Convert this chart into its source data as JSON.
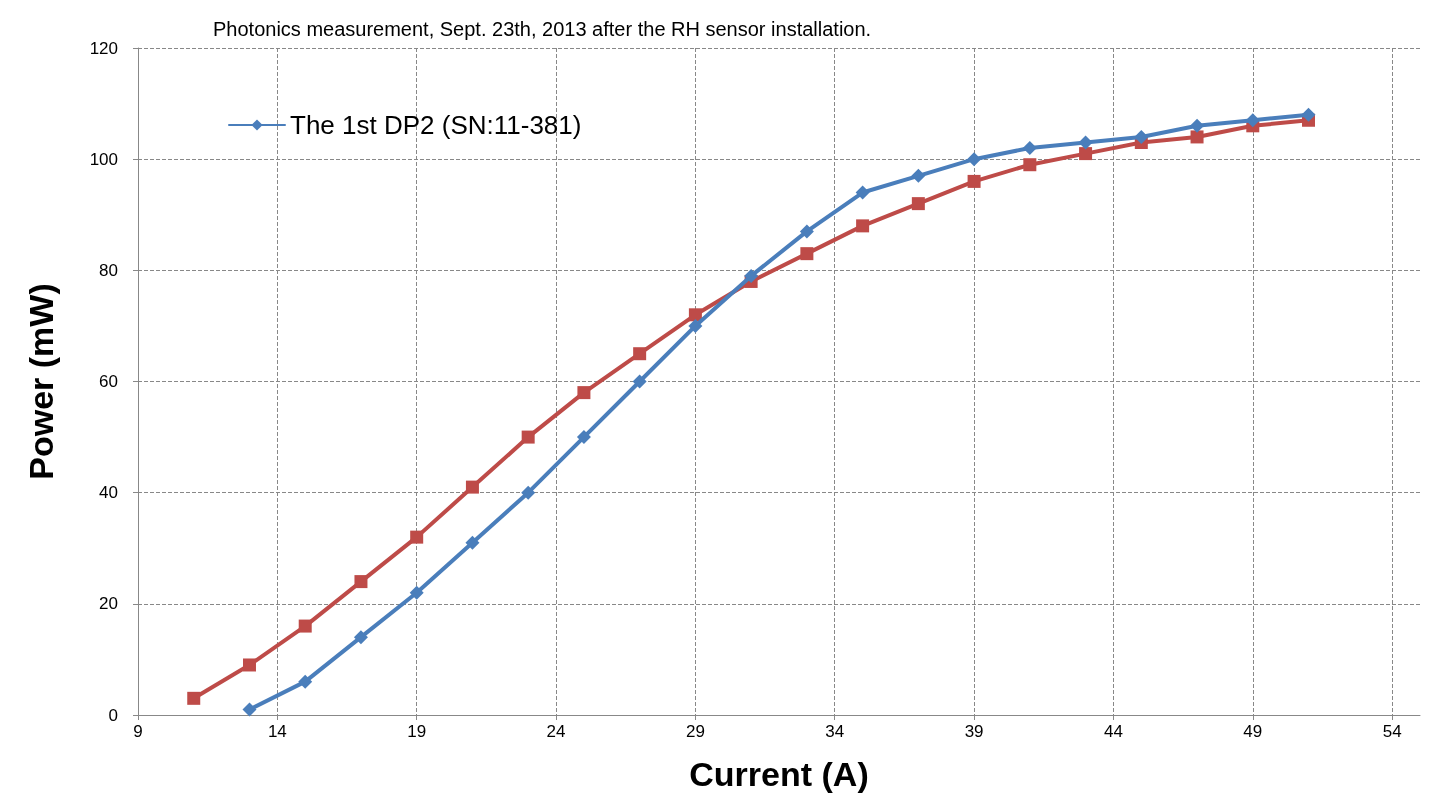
{
  "chart_data": {
    "type": "line",
    "title": "Photonics measurement, Sept. 23th, 2013 after the RH sensor installation.",
    "xlabel": "Current (A)",
    "ylabel": "Power (mW)",
    "series": [
      {
        "name": "The 1st DP2 (SN:11-381)",
        "color": "#4a7ebb",
        "marker": "diamond",
        "x": [
          13,
          15,
          17,
          19,
          21,
          23,
          25,
          27,
          29,
          31,
          33,
          35,
          37,
          39,
          41,
          43,
          45,
          47,
          49,
          51
        ],
        "values": [
          1,
          6,
          14,
          22,
          31,
          40,
          50,
          60,
          70,
          79,
          87,
          94,
          97,
          100,
          102,
          103,
          104,
          106,
          107,
          108
        ]
      },
      {
        "color": "#be4b48",
        "marker": "square",
        "x": [
          11,
          13,
          15,
          17,
          19,
          21,
          23,
          25,
          27,
          29,
          31,
          33,
          35,
          37,
          39,
          41,
          43,
          45,
          47,
          49,
          51
        ],
        "values": [
          3,
          9,
          16,
          24,
          32,
          41,
          50,
          58,
          65,
          72,
          78,
          83,
          88,
          92,
          96,
          99,
          101,
          103,
          104,
          106,
          107
        ]
      }
    ],
    "xlim": [
      9,
      55
    ],
    "xticks": [
      9,
      14,
      19,
      24,
      29,
      34,
      39,
      44,
      49,
      54
    ],
    "ylim": [
      0,
      120
    ],
    "yticks": [
      0,
      20,
      40,
      60,
      80,
      100,
      120
    ],
    "grid": true,
    "legend": "top left",
    "line_style": "solid"
  }
}
